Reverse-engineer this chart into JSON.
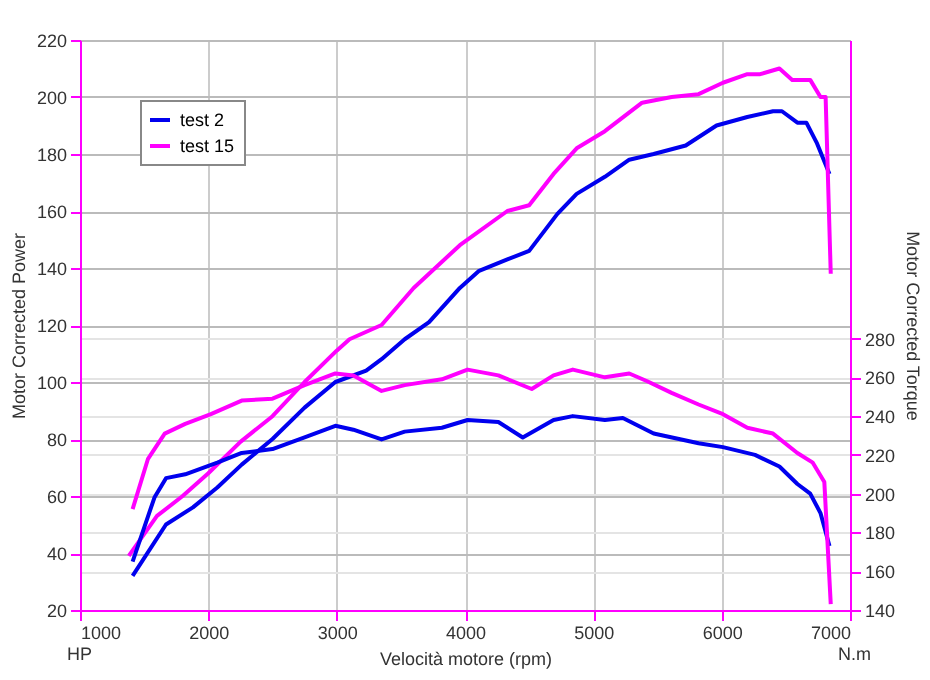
{
  "chart_data": {
    "type": "line",
    "xlabel": "Velocità motore (rpm)",
    "ylabel": "Motor Corrected Power",
    "y2label": "Motor Corrected Torque",
    "annotations": [
      "HP",
      "N.m"
    ],
    "xlim": [
      1000,
      7000
    ],
    "xticks": [
      1000,
      2000,
      3000,
      4000,
      5000,
      6000,
      7000
    ],
    "ylim": [
      20,
      220
    ],
    "yticks": [
      20,
      40,
      60,
      80,
      100,
      120,
      140,
      160,
      180,
      200,
      220
    ],
    "y2lim": [
      140,
      434
    ],
    "y2ticks": [
      140,
      160,
      180,
      200,
      220,
      240,
      260,
      280
    ],
    "grid": true,
    "legend": "top left",
    "marker": "none",
    "line_style": "solid",
    "series": [
      {
        "name": "test 2",
        "color": "#0000ee",
        "x": [
          1410,
          1670,
          1880,
          2070,
          2260,
          2500,
          2750,
          2990,
          3230,
          3350,
          3530,
          3720,
          3960,
          4110,
          4330,
          4500,
          4720,
          4870,
          5090,
          5280,
          5470,
          5720,
          5960,
          6200,
          6400,
          6470,
          6590,
          6660,
          6740,
          6840
        ],
        "values": [
          32,
          50,
          56,
          63,
          71,
          80,
          91,
          100,
          104,
          108,
          115,
          121,
          133,
          139,
          143,
          146,
          159,
          166,
          172,
          178,
          180,
          183,
          190,
          193,
          195,
          195,
          191,
          191,
          184,
          173
        ]
      },
      {
        "name": "test 15",
        "color": "#ff00ff",
        "x": [
          1380,
          1600,
          1800,
          2000,
          2250,
          2500,
          2750,
          3000,
          3100,
          3350,
          3600,
          3960,
          4330,
          4500,
          4690,
          4870,
          5090,
          5380,
          5610,
          5820,
          6010,
          6200,
          6300,
          6450,
          6550,
          6690,
          6770,
          6810,
          6850
        ],
        "values": [
          39,
          53,
          60,
          68,
          79,
          88,
          100,
          111,
          115,
          120,
          133,
          148,
          160,
          162,
          173,
          182,
          188,
          198,
          200,
          201,
          205,
          208,
          208,
          210,
          206,
          206,
          200,
          200,
          138
        ]
      },
      {
        "color": "#0000ee",
        "axis": "y2",
        "x": [
          1410,
          1580,
          1670,
          1820,
          2070,
          2260,
          2500,
          2750,
          2990,
          3130,
          3350,
          3530,
          3820,
          4020,
          4260,
          4450,
          4690,
          4840,
          5090,
          5230,
          5470,
          5820,
          6010,
          6260,
          6450,
          6590,
          6690,
          6770,
          6840
        ],
        "values": [
          165,
          198,
          208,
          210,
          216,
          221,
          223,
          229,
          235,
          233,
          228,
          232,
          234,
          238,
          237,
          229,
          238,
          240,
          238,
          239,
          231,
          226,
          224,
          220,
          214,
          205,
          200,
          190,
          173
        ]
      },
      {
        "color": "#ff00ff",
        "axis": "y2",
        "x": [
          1410,
          1530,
          1660,
          1820,
          2020,
          2260,
          2500,
          2750,
          2990,
          3130,
          3350,
          3530,
          3820,
          4020,
          4260,
          4520,
          4690,
          4840,
          5090,
          5280,
          5420,
          5610,
          5820,
          6010,
          6200,
          6400,
          6590,
          6710,
          6800,
          6850
        ],
        "values": [
          192,
          218,
          231,
          236,
          241,
          248,
          249,
          256,
          262,
          261,
          253,
          256,
          259,
          264,
          261,
          254,
          261,
          264,
          260,
          262,
          258,
          252,
          246,
          241,
          234,
          231,
          221,
          216,
          206,
          143
        ]
      }
    ]
  }
}
